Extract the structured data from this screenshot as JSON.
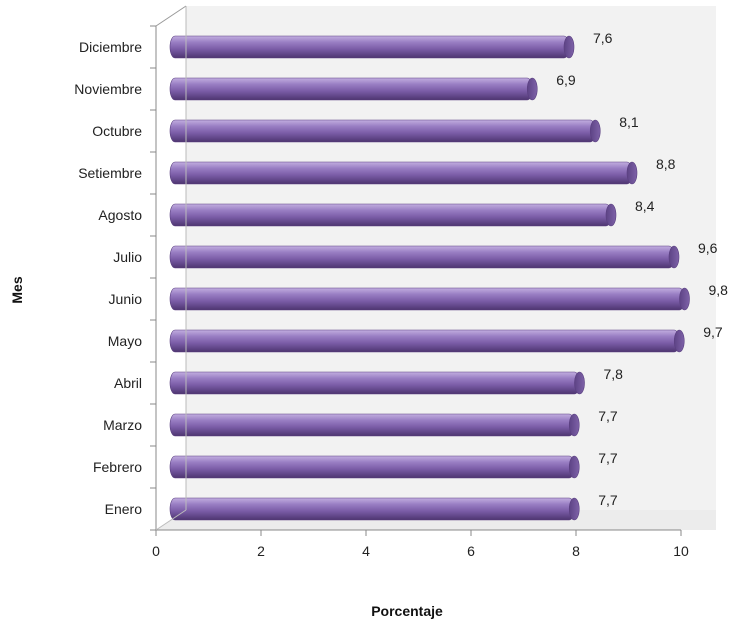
{
  "chart_data": {
    "type": "bar",
    "orientation": "horizontal",
    "categories": [
      "Enero",
      "Febrero",
      "Marzo",
      "Abril",
      "Mayo",
      "Junio",
      "Julio",
      "Agosto",
      "Setiembre",
      "Octubre",
      "Noviembre",
      "Diciembre"
    ],
    "values": [
      7.7,
      7.7,
      7.7,
      7.8,
      9.7,
      9.8,
      9.6,
      8.4,
      8.8,
      8.1,
      6.9,
      7.6
    ],
    "data_labels": [
      "7,7",
      "7,7",
      "7,7",
      "7,8",
      "9,7",
      "9,8",
      "9,6",
      "8,4",
      "8,8",
      "8,1",
      "6,9",
      "7,6"
    ],
    "xlabel": "Porcentaje",
    "ylabel": "Mes",
    "xlim": [
      0,
      10
    ],
    "xticks": [
      "0",
      "2",
      "4",
      "6",
      "8",
      "10"
    ],
    "grid": false,
    "legend": "none",
    "style": "3d-cylinder",
    "bar_color": "#8064a2",
    "bar_edge_color": "#5a3f80",
    "plot_wall_color": "#f2f2f2"
  }
}
